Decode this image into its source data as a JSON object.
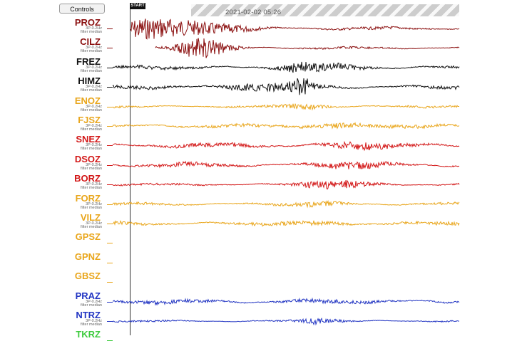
{
  "controls_label": "Controls",
  "start_label": "START",
  "timestamp": "2021-02-02 05:26",
  "colors": {
    "dark_red": "#8b1010",
    "black": "#111111",
    "orange": "#e9a61c",
    "red": "#d31818",
    "blue": "#2336c3",
    "green": "#3ecb3e"
  },
  "stations": [
    {
      "name": "PROZ",
      "sub1": "3P-0.2Hz",
      "sub2": "filter median",
      "color_key": "dark_red",
      "has_trace": true
    },
    {
      "name": "CILZ",
      "sub1": "3P-0.2Hz",
      "sub2": "filter median",
      "color_key": "dark_red",
      "has_trace": true
    },
    {
      "name": "FREZ",
      "sub1": "3P-0.2Hz",
      "sub2": "filter median",
      "color_key": "black",
      "has_trace": true
    },
    {
      "name": "HIMZ",
      "sub1": "3P-0.2Hz",
      "sub2": "filter median",
      "color_key": "black",
      "has_trace": true
    },
    {
      "name": "ENOZ",
      "sub1": "3P-0.2Hz",
      "sub2": "filter median",
      "color_key": "orange",
      "has_trace": true
    },
    {
      "name": "FJSZ",
      "sub1": "3P-0.2Hz",
      "sub2": "filter median",
      "color_key": "orange",
      "has_trace": true
    },
    {
      "name": "SNEZ",
      "sub1": "3P-0.2Hz",
      "sub2": "filter median",
      "color_key": "red",
      "has_trace": true
    },
    {
      "name": "DSOZ",
      "sub1": "3P-0.2Hz",
      "sub2": "filter median",
      "color_key": "red",
      "has_trace": true
    },
    {
      "name": "BORZ",
      "sub1": "3P-0.2Hz",
      "sub2": "filter median",
      "color_key": "red",
      "has_trace": true
    },
    {
      "name": "FORZ",
      "sub1": "3P-0.2Hz",
      "sub2": "filter median",
      "color_key": "orange",
      "has_trace": true
    },
    {
      "name": "VILZ",
      "sub1": "3P-0.2Hz",
      "sub2": "filter median",
      "color_key": "orange",
      "has_trace": true
    },
    {
      "name": "GPSZ",
      "sub1": "",
      "sub2": "",
      "color_key": "orange",
      "has_trace": false
    },
    {
      "name": "GPNZ",
      "sub1": "",
      "sub2": "",
      "color_key": "orange",
      "has_trace": false
    },
    {
      "name": "GBSZ",
      "sub1": "",
      "sub2": "",
      "color_key": "orange",
      "has_trace": false
    },
    {
      "name": "PRAZ",
      "sub1": "3P-0.2Hz",
      "sub2": "filter median",
      "color_key": "blue",
      "has_trace": true
    },
    {
      "name": "NTRZ",
      "sub1": "3P-0.2Hz",
      "sub2": "filter median",
      "color_key": "blue",
      "has_trace": true
    },
    {
      "name": "TKRZ",
      "sub1": "",
      "sub2": "",
      "color_key": "green",
      "has_trace": false
    }
  ]
}
